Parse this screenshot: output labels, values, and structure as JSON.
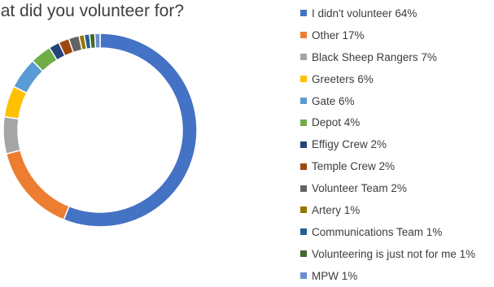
{
  "chart_data": {
    "type": "donut",
    "title": "What did you volunteer for?",
    "unit": "%",
    "legend_position": "right",
    "slices": [
      {
        "label": "I didn't volunteer 64%",
        "value": 64,
        "color": "#4472C4"
      },
      {
        "label": "Other 17%",
        "value": 17,
        "color": "#ED7D31"
      },
      {
        "label": "Black Sheep Rangers 7%",
        "value": 7,
        "color": "#A5A5A5"
      },
      {
        "label": "Greeters 6%",
        "value": 6,
        "color": "#FFC000"
      },
      {
        "label": "Gate 6%",
        "value": 6,
        "color": "#5B9BD5"
      },
      {
        "label": "Depot 4%",
        "value": 4,
        "color": "#70AD47"
      },
      {
        "label": "Effigy Crew 2%",
        "value": 2,
        "color": "#264478"
      },
      {
        "label": "Temple Crew 2%",
        "value": 2,
        "color": "#9E480E"
      },
      {
        "label": "Volunteer Team 2%",
        "value": 2,
        "color": "#636363"
      },
      {
        "label": "Artery 1%",
        "value": 1,
        "color": "#997300"
      },
      {
        "label": "Communications Team 1%",
        "value": 1,
        "color": "#255E91"
      },
      {
        "label": "Volunteering is just not for me 1%",
        "value": 1,
        "color": "#43682B"
      },
      {
        "label": "MPW 1%",
        "value": 1,
        "color": "#698ED0"
      }
    ]
  }
}
